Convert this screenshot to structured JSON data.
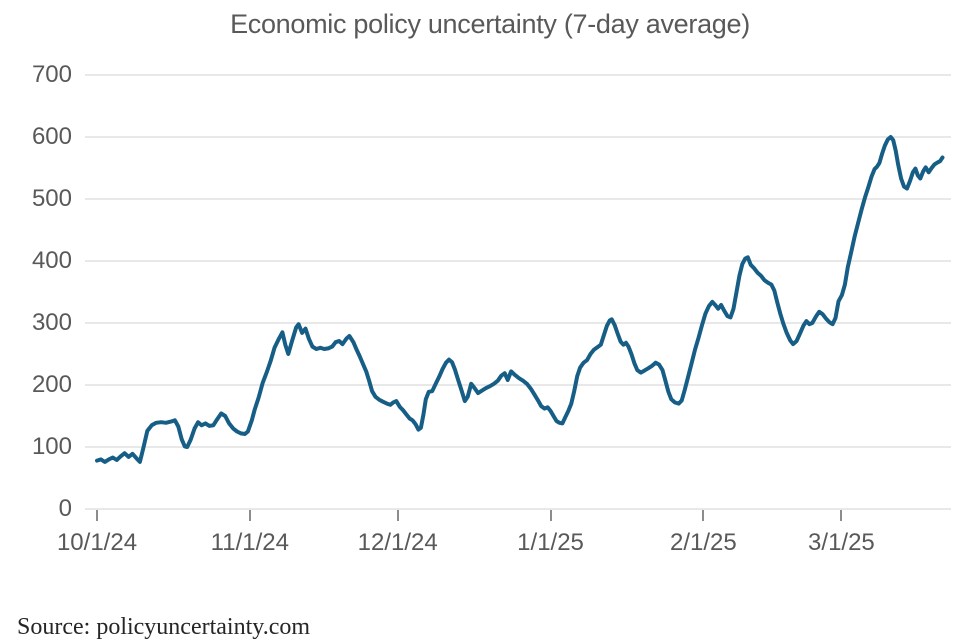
{
  "title": "Economic policy uncertainty (7-day average)",
  "source": "Source: policyuncertainty.com",
  "colors": {
    "line": "#175E86",
    "grid": "#D9D9D9",
    "axis_text": "#595959",
    "title_text": "#595959",
    "source_text": "#262626",
    "tick_mark": "#8C8C8C"
  },
  "chart_data": {
    "type": "line",
    "title": "Economic policy uncertainty (7-day average)",
    "xlabel": "",
    "ylabel": "",
    "ylim": [
      0,
      700
    ],
    "y_ticks": [
      0,
      100,
      200,
      300,
      400,
      500,
      600,
      700
    ],
    "grid": "horizontal",
    "legend": "none",
    "x_ticks": [
      {
        "label": "10/1/24",
        "day": 0
      },
      {
        "label": "11/1/24",
        "day": 31
      },
      {
        "label": "12/1/24",
        "day": 61
      },
      {
        "label": "1/1/25",
        "day": 92
      },
      {
        "label": "2/1/25",
        "day": 123
      },
      {
        "label": "3/1/25",
        "day": 151
      }
    ],
    "x_range_days": [
      0,
      171.5
    ],
    "series": [
      {
        "name": "Economic policy uncertainty 7-day average",
        "points": [
          [
            0,
            78
          ],
          [
            0.8,
            80
          ],
          [
            1.6,
            76
          ],
          [
            2.4,
            80
          ],
          [
            3.2,
            83
          ],
          [
            4,
            79
          ],
          [
            4.8,
            85
          ],
          [
            5.6,
            90
          ],
          [
            6.4,
            84
          ],
          [
            7.2,
            89
          ],
          [
            8,
            82
          ],
          [
            8.7,
            76
          ],
          [
            9.4,
            98
          ],
          [
            10.2,
            126
          ],
          [
            11.1,
            135
          ],
          [
            12,
            139
          ],
          [
            13,
            140
          ],
          [
            14,
            139
          ],
          [
            15,
            141
          ],
          [
            15.8,
            143
          ],
          [
            16.5,
            133
          ],
          [
            17.2,
            112
          ],
          [
            17.8,
            101
          ],
          [
            18.3,
            100
          ],
          [
            19,
            112
          ],
          [
            19.8,
            130
          ],
          [
            20.5,
            140
          ],
          [
            21.2,
            135
          ],
          [
            22,
            138
          ],
          [
            22.8,
            134
          ],
          [
            23.6,
            135
          ],
          [
            24.4,
            145
          ],
          [
            25.2,
            154
          ],
          [
            26,
            150
          ],
          [
            26.8,
            138
          ],
          [
            27.6,
            130
          ],
          [
            28.4,
            125
          ],
          [
            29.2,
            122
          ],
          [
            30,
            121
          ],
          [
            30.6,
            125
          ],
          [
            31.4,
            143
          ],
          [
            32,
            161
          ],
          [
            32.8,
            180
          ],
          [
            33.6,
            203
          ],
          [
            34.4,
            220
          ],
          [
            35.2,
            238
          ],
          [
            36,
            260
          ],
          [
            36.8,
            273
          ],
          [
            37.6,
            285
          ],
          [
            38.2,
            265
          ],
          [
            38.8,
            250
          ],
          [
            39.6,
            272
          ],
          [
            40.4,
            293
          ],
          [
            40.9,
            298
          ],
          [
            41.6,
            284
          ],
          [
            42.3,
            291
          ],
          [
            43,
            274
          ],
          [
            43.7,
            262
          ],
          [
            44.5,
            258
          ],
          [
            45.3,
            260
          ],
          [
            46.1,
            258
          ],
          [
            46.9,
            259
          ],
          [
            47.7,
            262
          ],
          [
            48.4,
            269
          ],
          [
            49.1,
            271
          ],
          [
            49.8,
            266
          ],
          [
            50.6,
            275
          ],
          [
            51.2,
            279
          ],
          [
            52,
            269
          ],
          [
            52.6,
            258
          ],
          [
            53.3,
            246
          ],
          [
            54,
            233
          ],
          [
            54.6,
            222
          ],
          [
            55.2,
            207
          ],
          [
            55.8,
            190
          ],
          [
            56.5,
            181
          ],
          [
            57.3,
            176
          ],
          [
            58,
            173
          ],
          [
            58.8,
            170
          ],
          [
            59.5,
            168
          ],
          [
            60.1,
            172
          ],
          [
            60.7,
            174
          ],
          [
            61.4,
            165
          ],
          [
            62.1,
            159
          ],
          [
            62.8,
            152
          ],
          [
            63.4,
            146
          ],
          [
            64,
            143
          ],
          [
            64.6,
            137
          ],
          [
            65.2,
            128
          ],
          [
            65.7,
            131
          ],
          [
            66.2,
            152
          ],
          [
            66.7,
            177
          ],
          [
            67.3,
            189
          ],
          [
            68,
            190
          ],
          [
            68.7,
            202
          ],
          [
            69.4,
            213
          ],
          [
            70.1,
            226
          ],
          [
            70.8,
            236
          ],
          [
            71.4,
            241
          ],
          [
            72,
            237
          ],
          [
            72.6,
            225
          ],
          [
            73.3,
            207
          ],
          [
            74,
            190
          ],
          [
            74.6,
            174
          ],
          [
            75.2,
            181
          ],
          [
            75.9,
            202
          ],
          [
            76.6,
            195
          ],
          [
            77.3,
            187
          ],
          [
            78.1,
            191
          ],
          [
            78.9,
            195
          ],
          [
            79.7,
            198
          ],
          [
            80.5,
            202
          ],
          [
            81.3,
            207
          ],
          [
            82,
            215
          ],
          [
            82.7,
            219
          ],
          [
            83.3,
            208
          ],
          [
            84,
            222
          ],
          [
            84.8,
            216
          ],
          [
            85.6,
            211
          ],
          [
            86.4,
            207
          ],
          [
            87.2,
            202
          ],
          [
            88,
            194
          ],
          [
            88.7,
            185
          ],
          [
            89.4,
            176
          ],
          [
            90.1,
            166
          ],
          [
            90.8,
            162
          ],
          [
            91.4,
            164
          ],
          [
            92,
            158
          ],
          [
            92.6,
            150
          ],
          [
            93.2,
            142
          ],
          [
            93.8,
            139
          ],
          [
            94.4,
            138
          ],
          [
            95,
            148
          ],
          [
            95.6,
            158
          ],
          [
            96.2,
            170
          ],
          [
            96.8,
            190
          ],
          [
            97.4,
            214
          ],
          [
            98,
            228
          ],
          [
            98.7,
            236
          ],
          [
            99.4,
            240
          ],
          [
            100.1,
            250
          ],
          [
            100.8,
            257
          ],
          [
            101.5,
            261
          ],
          [
            102.2,
            265
          ],
          [
            102.8,
            280
          ],
          [
            103.4,
            295
          ],
          [
            104,
            304
          ],
          [
            104.4,
            306
          ],
          [
            105,
            297
          ],
          [
            105.6,
            283
          ],
          [
            106.2,
            270
          ],
          [
            106.8,
            265
          ],
          [
            107.3,
            268
          ],
          [
            107.8,
            262
          ],
          [
            108.4,
            250
          ],
          [
            109,
            235
          ],
          [
            109.6,
            224
          ],
          [
            110.3,
            220
          ],
          [
            111,
            223
          ],
          [
            111.8,
            227
          ],
          [
            112.6,
            231
          ],
          [
            113.3,
            236
          ],
          [
            114,
            233
          ],
          [
            114.7,
            224
          ],
          [
            115.3,
            207
          ],
          [
            115.9,
            189
          ],
          [
            116.5,
            177
          ],
          [
            117.2,
            172
          ],
          [
            118,
            170
          ],
          [
            118.6,
            175
          ],
          [
            119.2,
            192
          ],
          [
            119.9,
            213
          ],
          [
            120.6,
            235
          ],
          [
            121.3,
            257
          ],
          [
            122,
            276
          ],
          [
            122.7,
            296
          ],
          [
            123.4,
            315
          ],
          [
            124.1,
            327
          ],
          [
            124.8,
            334
          ],
          [
            125.4,
            329
          ],
          [
            126,
            323
          ],
          [
            126.6,
            329
          ],
          [
            127.2,
            320
          ],
          [
            127.9,
            311
          ],
          [
            128.5,
            309
          ],
          [
            129.1,
            323
          ],
          [
            129.7,
            349
          ],
          [
            130.3,
            376
          ],
          [
            130.9,
            395
          ],
          [
            131.5,
            404
          ],
          [
            132,
            406
          ],
          [
            132.6,
            394
          ],
          [
            133.3,
            388
          ],
          [
            134,
            381
          ],
          [
            134.7,
            376
          ],
          [
            135.4,
            369
          ],
          [
            136.1,
            365
          ],
          [
            136.8,
            362
          ],
          [
            137.4,
            352
          ],
          [
            138,
            333
          ],
          [
            138.6,
            315
          ],
          [
            139.2,
            299
          ],
          [
            139.9,
            284
          ],
          [
            140.6,
            272
          ],
          [
            141.2,
            266
          ],
          [
            141.9,
            271
          ],
          [
            142.6,
            283
          ],
          [
            143.3,
            296
          ],
          [
            143.9,
            303
          ],
          [
            144.5,
            298
          ],
          [
            145.1,
            300
          ],
          [
            145.8,
            310
          ],
          [
            146.5,
            318
          ],
          [
            147.2,
            314
          ],
          [
            147.9,
            307
          ],
          [
            148.6,
            301
          ],
          [
            149.2,
            298
          ],
          [
            149.8,
            308
          ],
          [
            150.4,
            335
          ],
          [
            151.1,
            345
          ],
          [
            151.7,
            362
          ],
          [
            152.3,
            390
          ],
          [
            153,
            415
          ],
          [
            153.7,
            440
          ],
          [
            154.4,
            462
          ],
          [
            155.1,
            483
          ],
          [
            155.8,
            503
          ],
          [
            156.5,
            520
          ],
          [
            157.1,
            536
          ],
          [
            157.7,
            548
          ],
          [
            158.2,
            552
          ],
          [
            158.7,
            558
          ],
          [
            159.2,
            572
          ],
          [
            159.8,
            586
          ],
          [
            160.4,
            596
          ],
          [
            161,
            600
          ],
          [
            161.5,
            595
          ],
          [
            162,
            578
          ],
          [
            162.5,
            556
          ],
          [
            163.1,
            533
          ],
          [
            163.7,
            520
          ],
          [
            164.3,
            517
          ],
          [
            164.9,
            529
          ],
          [
            165.5,
            543
          ],
          [
            166,
            549
          ],
          [
            166.5,
            538
          ],
          [
            167,
            533
          ],
          [
            167.6,
            545
          ],
          [
            168.1,
            551
          ],
          [
            168.7,
            543
          ],
          [
            169.3,
            550
          ],
          [
            169.9,
            556
          ],
          [
            170.5,
            559
          ],
          [
            171,
            561
          ],
          [
            171.5,
            567
          ]
        ]
      }
    ]
  }
}
